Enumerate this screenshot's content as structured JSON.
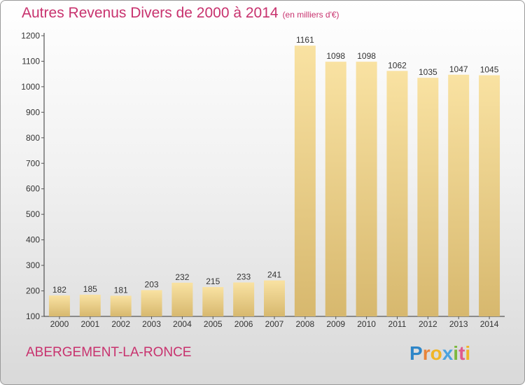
{
  "title": "Autres Revenus Divers de 2000 à 2014",
  "title_unit": "(en milliers d'€)",
  "commune": "ABERGEMENT-LA-RONCE",
  "logo": {
    "letters": [
      "P",
      "r",
      "o",
      "x",
      "i",
      "t",
      "i"
    ],
    "colors": [
      "#2e86c8",
      "#e8843a",
      "#f0b526",
      "#4aa3df",
      "#7cb83f",
      "#e05a8c",
      "#f0b526"
    ]
  },
  "colors": {
    "bar_light": "#f9e2a2",
    "bar_dark": "#d7b86e",
    "axis": "#333333",
    "grid_tick": "#555555",
    "accent": "#c8326e"
  },
  "chart_data": {
    "type": "bar",
    "categories": [
      "2000",
      "2001",
      "2002",
      "2003",
      "2004",
      "2005",
      "2006",
      "2007",
      "2008",
      "2009",
      "2010",
      "2011",
      "2012",
      "2013",
      "2014"
    ],
    "values": [
      182,
      185,
      181,
      203,
      232,
      215,
      233,
      241,
      1161,
      1098,
      1098,
      1062,
      1035,
      1047,
      1045
    ],
    "ylim": [
      100,
      1200
    ],
    "yticks": [
      100,
      200,
      300,
      400,
      500,
      600,
      700,
      800,
      900,
      1000,
      1100,
      1200
    ],
    "grid": false,
    "legend": "none"
  }
}
